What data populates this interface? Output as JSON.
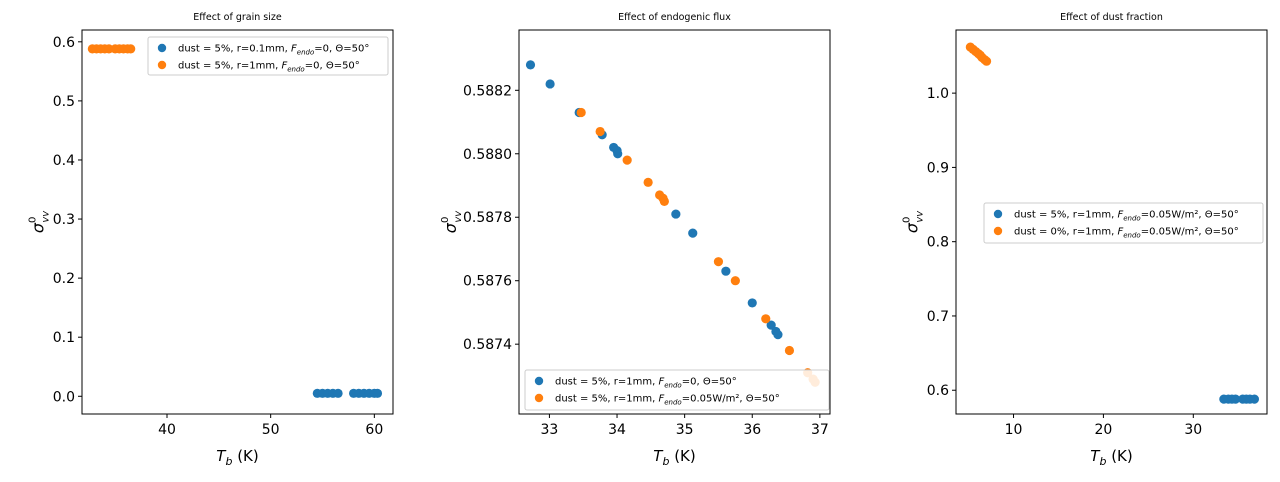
{
  "colors": {
    "series_blue": "#1f77b4",
    "series_orange": "#ff7f0e"
  },
  "chart_data": [
    {
      "type": "scatter",
      "title": "Effect of grain size",
      "xlabel": "T_b (K)",
      "ylabel": "σ0_vv",
      "xlim": [
        31.8,
        61.8
      ],
      "ylim": [
        -0.03,
        0.62
      ],
      "xticks": [
        40,
        50,
        60
      ],
      "xtick_labels": [
        "40",
        "50",
        "60"
      ],
      "yticks": [
        0.0,
        0.1,
        0.2,
        0.3,
        0.4,
        0.5,
        0.6
      ],
      "ytick_labels": [
        "0.0",
        "0.1",
        "0.2",
        "0.3",
        "0.4",
        "0.5",
        "0.6"
      ],
      "legend_position": "top-right",
      "series": [
        {
          "name": "dust = 5%, r=0.1mm, F_endo=0, Θ=50°",
          "label_prefix": "dust = 5%, r=0.1mm, ",
          "label_sym": "F",
          "label_sub": "endo",
          "label_suffix": "=0, Θ=50°",
          "color": "#1f77b4",
          "x": [
            54.5,
            55.0,
            55.5,
            56.0,
            56.5,
            58.0,
            58.5,
            59.0,
            59.5,
            60.0,
            60.3
          ],
          "y": [
            0.005,
            0.005,
            0.005,
            0.005,
            0.005,
            0.005,
            0.005,
            0.005,
            0.005,
            0.005,
            0.005
          ]
        },
        {
          "name": "dust = 5%, r=1mm, F_endo=0, Θ=50°",
          "label_prefix": "dust = 5%, r=1mm, ",
          "label_sym": "F",
          "label_sub": "endo",
          "label_suffix": "=0, Θ=50°",
          "color": "#ff7f0e",
          "x": [
            32.8,
            33.2,
            33.6,
            34.0,
            34.4,
            35.0,
            35.4,
            35.8,
            36.2,
            36.5
          ],
          "y": [
            0.588,
            0.588,
            0.588,
            0.588,
            0.588,
            0.588,
            0.588,
            0.588,
            0.588,
            0.588
          ]
        }
      ]
    },
    {
      "type": "scatter",
      "title": "Effect of endogenic flux",
      "xlabel": "T_b (K)",
      "ylabel": "σ0_vv",
      "xlim": [
        32.55,
        37.15
      ],
      "ylim": [
        0.58718,
        0.58839
      ],
      "xticks": [
        33,
        34,
        35,
        36,
        37
      ],
      "xtick_labels": [
        "33",
        "34",
        "35",
        "36",
        "37"
      ],
      "yticks": [
        0.5874,
        0.5876,
        0.5878,
        0.588,
        0.5882
      ],
      "ytick_labels": [
        "0.5874",
        "0.5876",
        "0.5878",
        "0.5880",
        "0.5882"
      ],
      "legend_position": "lower-right",
      "series": [
        {
          "name": "dust = 5%, r=1mm, F_endo=0, Θ=50°",
          "label_prefix": "dust = 5%, r=1mm, ",
          "label_sym": "F",
          "label_sub": "endo",
          "label_suffix": "=0, Θ=50°",
          "color": "#1f77b4",
          "x": [
            32.72,
            33.01,
            33.44,
            33.78,
            33.95,
            34.0,
            34.01,
            34.87,
            35.12,
            35.61,
            36.0,
            36.28,
            36.35,
            36.38
          ],
          "y": [
            0.58828,
            0.58822,
            0.58813,
            0.58806,
            0.58802,
            0.58801,
            0.588,
            0.58781,
            0.58775,
            0.58763,
            0.58753,
            0.58746,
            0.58744,
            0.58743
          ]
        },
        {
          "name": "dust = 5%, r=1mm, F_endo=0.05W/m², Θ=50°",
          "label_prefix": "dust = 5%, r=1mm, ",
          "label_sym": "F",
          "label_sub": "endo",
          "label_suffix": "=0.05W/m², Θ=50°",
          "color": "#ff7f0e",
          "x": [
            33.47,
            33.75,
            34.15,
            34.46,
            34.63,
            34.68,
            34.7,
            35.5,
            35.75,
            36.2,
            36.55,
            36.82,
            36.9,
            36.93
          ],
          "y": [
            0.58813,
            0.58807,
            0.58798,
            0.58791,
            0.58787,
            0.58786,
            0.58785,
            0.58766,
            0.5876,
            0.58748,
            0.58738,
            0.58731,
            0.58729,
            0.58728
          ]
        }
      ]
    },
    {
      "type": "scatter",
      "title": "Effect of dust fraction",
      "xlabel": "T_b (K)",
      "ylabel": "σ0_vv",
      "xlim": [
        3.6,
        38.2
      ],
      "ylim": [
        0.568,
        1.085
      ],
      "xticks": [
        10,
        20,
        30
      ],
      "xtick_labels": [
        "10",
        "20",
        "30"
      ],
      "yticks": [
        0.6,
        0.7,
        0.8,
        0.9,
        1.0
      ],
      "ytick_labels": [
        "0.6",
        "0.7",
        "0.8",
        "0.9",
        "1.0"
      ],
      "legend_position": "center-right",
      "series": [
        {
          "name": "dust = 5%, r=1mm, F_endo=0.05W/m², Θ=50°",
          "label_prefix": "dust = 5%, r=1mm, ",
          "label_sym": "F",
          "label_sub": "endo",
          "label_suffix": "=0.05W/m², Θ=50°",
          "color": "#1f77b4",
          "x": [
            33.4,
            33.9,
            34.3,
            34.7,
            35.5,
            35.9,
            36.3,
            36.8
          ],
          "y": [
            0.588,
            0.588,
            0.588,
            0.588,
            0.588,
            0.588,
            0.588,
            0.588
          ]
        },
        {
          "name": "dust = 0%, r=1mm, F_endo=0.05W/m², Θ=50°",
          "label_prefix": "dust = 0%, r=1mm, ",
          "label_sym": "F",
          "label_sub": "endo",
          "label_suffix": "=0.05W/m², Θ=50°",
          "color": "#ff7f0e",
          "x": [
            5.2,
            5.5,
            5.8,
            6.1,
            6.3,
            6.5,
            6.8,
            7.0
          ],
          "y": [
            1.062,
            1.059,
            1.056,
            1.053,
            1.051,
            1.048,
            1.045,
            1.043
          ]
        }
      ]
    }
  ]
}
